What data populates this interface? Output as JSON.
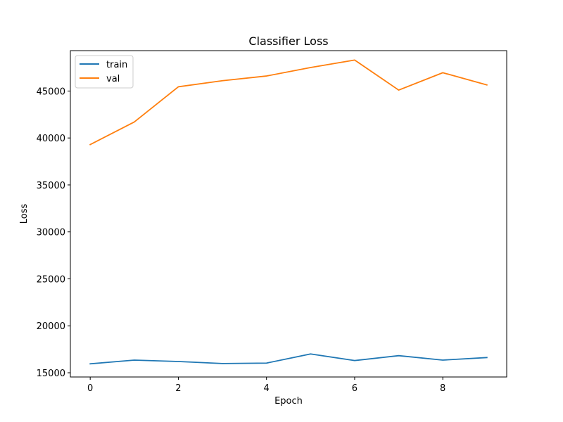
{
  "chart_data": {
    "type": "line",
    "title": "Classifier Loss",
    "xlabel": "Epoch",
    "ylabel": "Loss",
    "xlim": [
      -0.45,
      9.45
    ],
    "ylim": [
      14550,
      49300
    ],
    "xticks": [
      0,
      2,
      4,
      6,
      8
    ],
    "yticks": [
      15000,
      20000,
      25000,
      30000,
      35000,
      40000,
      45000
    ],
    "x": [
      0,
      1,
      2,
      3,
      4,
      5,
      6,
      7,
      8,
      9
    ],
    "series": [
      {
        "name": "train",
        "color": "#1f77b4",
        "values": [
          15950,
          16350,
          16200,
          15980,
          16030,
          17000,
          16300,
          16820,
          16350,
          16620
        ]
      },
      {
        "name": "val",
        "color": "#ff7f0e",
        "values": [
          39300,
          41700,
          45450,
          46100,
          46600,
          47500,
          48300,
          45100,
          46950,
          45650
        ]
      }
    ],
    "legend_position": "top-left",
    "grid": false
  }
}
